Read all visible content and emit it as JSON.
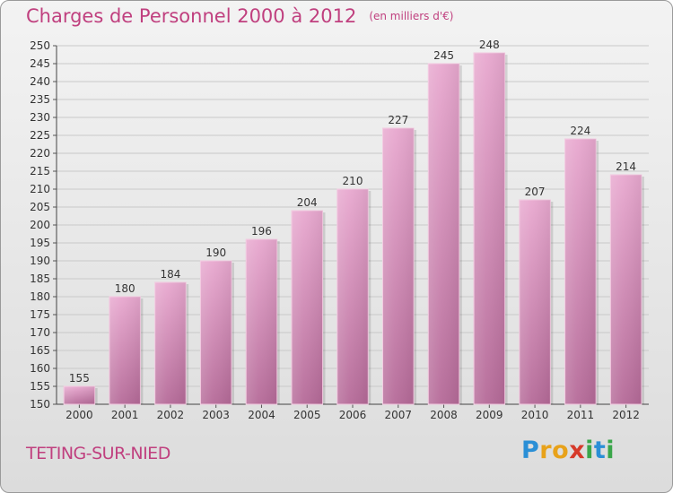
{
  "header": {
    "title": "Charges de Personnel 2000 à 2012",
    "subtitle": "(en milliers d'€)"
  },
  "footer": {
    "location": "TETING-SUR-NIED",
    "brand_letters": [
      "P",
      "r",
      "o",
      "x",
      "i",
      "t",
      "i"
    ],
    "brand_colors": [
      "#2a8fd6",
      "#e8a21a",
      "#e8a21a",
      "#d63a2a",
      "#3aa64a",
      "#2a8fd6",
      "#3aa64a"
    ]
  },
  "chart_data": {
    "type": "bar",
    "categories": [
      "2000",
      "2001",
      "2002",
      "2003",
      "2004",
      "2005",
      "2006",
      "2007",
      "2008",
      "2009",
      "2010",
      "2011",
      "2012"
    ],
    "values": [
      155,
      180,
      184,
      190,
      196,
      204,
      210,
      227,
      245,
      248,
      207,
      224,
      214
    ],
    "title": "Charges de Personnel 2000 à 2012",
    "xlabel": "",
    "ylabel": "",
    "ylim": [
      150,
      250
    ],
    "yticks": [
      150,
      155,
      160,
      165,
      170,
      175,
      180,
      185,
      190,
      195,
      200,
      205,
      210,
      215,
      220,
      225,
      230,
      235,
      240,
      245,
      250
    ],
    "grid": true,
    "bar_color": "#d58fb8",
    "data_labels": true
  }
}
